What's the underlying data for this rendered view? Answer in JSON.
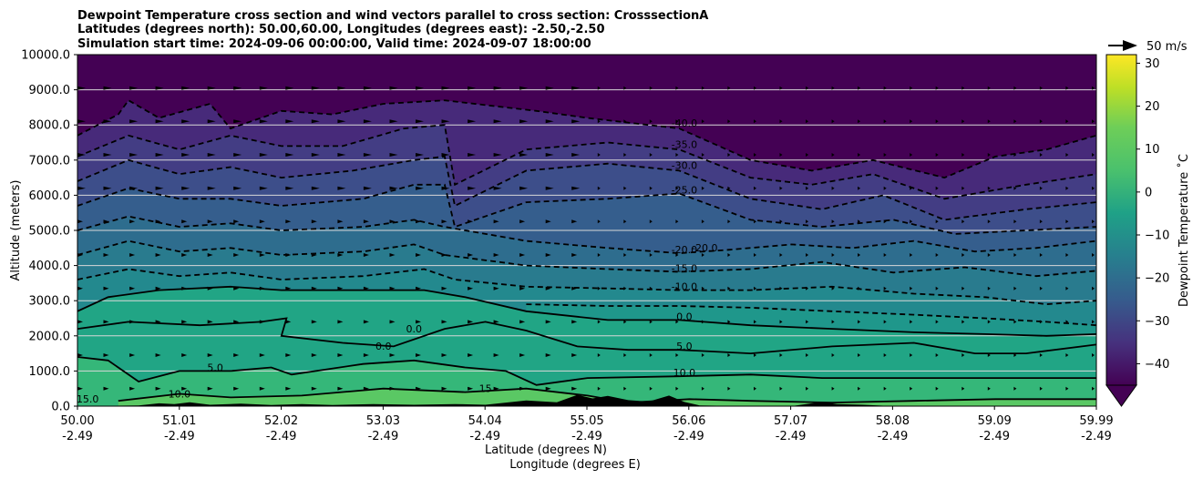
{
  "figure": {
    "title_lines": [
      "Dewpoint Temperature cross section and wind vectors parallel to cross section: CrosssectionA",
      "Latitudes (degrees north): 50.00,60.00, Longitudes (degrees east): -2.50,-2.50",
      "Simulation start time: 2024-09-06 00:00:00, Valid time: 2024-09-07 18:00:00"
    ]
  },
  "chart_data": {
    "type": "heatmap",
    "ylabel": "Altitude (meters)",
    "xlabel_lat": "Latitude (degrees N)",
    "xlabel_lon": "Longitude (degrees E)",
    "x_ticks": [
      {
        "lat": "50.00",
        "lon": "-2.49"
      },
      {
        "lat": "51.01",
        "lon": "-2.49"
      },
      {
        "lat": "52.02",
        "lon": "-2.49"
      },
      {
        "lat": "53.03",
        "lon": "-2.49"
      },
      {
        "lat": "54.04",
        "lon": "-2.49"
      },
      {
        "lat": "55.05",
        "lon": "-2.49"
      },
      {
        "lat": "56.06",
        "lon": "-2.49"
      },
      {
        "lat": "57.07",
        "lon": "-2.49"
      },
      {
        "lat": "58.08",
        "lon": "-2.49"
      },
      {
        "lat": "59.09",
        "lon": "-2.49"
      },
      {
        "lat": "59.99",
        "lon": "-2.49"
      }
    ],
    "xlim": [
      50.0,
      59.99
    ],
    "ylim": [
      0,
      10000
    ],
    "y_ticks": [
      "0.0",
      "1000.0",
      "2000.0",
      "3000.0",
      "4000.0",
      "5000.0",
      "6000.0",
      "7000.0",
      "8000.0",
      "9000.0",
      "10000.0"
    ],
    "y_tick_values": [
      0,
      1000,
      2000,
      3000,
      4000,
      5000,
      6000,
      7000,
      8000,
      9000,
      10000
    ],
    "grid": "horizontal",
    "colorbar": {
      "label": "Dewpoint Temperature $^\\circ$C",
      "label_display": "Dewpoint Temperature ˚C",
      "range": [
        -45,
        32
      ],
      "ticks": [
        "30",
        "20",
        "10",
        "0",
        "−10",
        "−20",
        "−30",
        "−40"
      ],
      "tick_values": [
        30,
        20,
        10,
        0,
        -10,
        -20,
        -30,
        -40
      ],
      "extend": "min",
      "colormap": "viridis"
    },
    "wind_key": {
      "label": "50 m/s"
    },
    "contour_labels": [
      {
        "text": "-40.0",
        "lat": 55.95,
        "alt": 7950
      },
      {
        "text": "-35.0",
        "lat": 55.95,
        "alt": 7350
      },
      {
        "text": "-30.0",
        "lat": 55.95,
        "alt": 6750
      },
      {
        "text": "-25.0",
        "lat": 55.95,
        "alt": 6050
      },
      {
        "text": "-20.0",
        "lat": 55.95,
        "alt": 4350
      },
      {
        "text": "-20.0",
        "lat": 56.15,
        "alt": 4400
      },
      {
        "text": "-15.0",
        "lat": 55.95,
        "alt": 3820
      },
      {
        "text": "-10.0",
        "lat": 55.95,
        "alt": 3300
      },
      {
        "text": "0.0",
        "lat": 55.95,
        "alt": 2450
      },
      {
        "text": "5.0",
        "lat": 55.95,
        "alt": 1600
      },
      {
        "text": "10.0",
        "lat": 55.95,
        "alt": 850
      },
      {
        "text": "5.0",
        "lat": 51.35,
        "alt": 1000
      },
      {
        "text": "0.0",
        "lat": 53.0,
        "alt": 1600
      },
      {
        "text": "0.0",
        "lat": 53.3,
        "alt": 2100
      },
      {
        "text": "15.0",
        "lat": 50.1,
        "alt": 100
      },
      {
        "text": "10.0",
        "lat": 51.0,
        "alt": 250
      },
      {
        "text": "15",
        "lat": 54.0,
        "alt": 400
      }
    ],
    "contours": [
      {
        "level": -40,
        "style": "dashed",
        "points": [
          [
            50.0,
            7700
          ],
          [
            50.4,
            8300
          ],
          [
            50.5,
            8700
          ],
          [
            50.8,
            8200
          ],
          [
            51.3,
            8600
          ],
          [
            51.5,
            7900
          ],
          [
            52.0,
            8400
          ],
          [
            52.5,
            8300
          ],
          [
            53.0,
            8600
          ],
          [
            53.6,
            8700
          ],
          [
            54.5,
            8400
          ],
          [
            55.0,
            8200
          ],
          [
            55.9,
            7900
          ],
          [
            56.6,
            7000
          ],
          [
            57.2,
            6700
          ],
          [
            57.8,
            7000
          ],
          [
            58.5,
            6500
          ],
          [
            59.0,
            7100
          ],
          [
            59.5,
            7300
          ],
          [
            59.99,
            7700
          ]
        ]
      },
      {
        "level": -35,
        "style": "dashed",
        "points": [
          [
            50.0,
            7100
          ],
          [
            50.5,
            7700
          ],
          [
            51.0,
            7300
          ],
          [
            51.5,
            7700
          ],
          [
            52.0,
            7400
          ],
          [
            52.6,
            7400
          ],
          [
            53.2,
            7900
          ],
          [
            53.6,
            8000
          ],
          [
            53.7,
            6300
          ],
          [
            54.4,
            7300
          ],
          [
            55.2,
            7500
          ],
          [
            55.9,
            7300
          ],
          [
            56.6,
            6500
          ],
          [
            57.2,
            6300
          ],
          [
            57.8,
            6600
          ],
          [
            58.5,
            5900
          ],
          [
            59.3,
            6300
          ],
          [
            59.99,
            6600
          ]
        ]
      },
      {
        "level": -30,
        "style": "dashed",
        "points": [
          [
            50.0,
            6400
          ],
          [
            50.5,
            7000
          ],
          [
            51.0,
            6600
          ],
          [
            51.5,
            6800
          ],
          [
            52.0,
            6500
          ],
          [
            52.7,
            6700
          ],
          [
            53.3,
            7000
          ],
          [
            53.6,
            7100
          ],
          [
            53.7,
            5700
          ],
          [
            54.4,
            6700
          ],
          [
            55.2,
            6900
          ],
          [
            55.9,
            6700
          ],
          [
            56.6,
            5900
          ],
          [
            57.3,
            5600
          ],
          [
            57.9,
            6000
          ],
          [
            58.5,
            5300
          ],
          [
            59.3,
            5600
          ],
          [
            59.99,
            5800
          ]
        ]
      },
      {
        "level": -25,
        "style": "dashed",
        "points": [
          [
            50.0,
            5700
          ],
          [
            50.5,
            6200
          ],
          [
            51.0,
            5900
          ],
          [
            51.5,
            5900
          ],
          [
            52.0,
            5700
          ],
          [
            52.8,
            5900
          ],
          [
            53.3,
            6300
          ],
          [
            53.6,
            6300
          ],
          [
            53.7,
            5100
          ],
          [
            54.4,
            5800
          ],
          [
            55.2,
            5900
          ],
          [
            55.9,
            6050
          ],
          [
            56.6,
            5300
          ],
          [
            57.3,
            5100
          ],
          [
            58.0,
            5300
          ],
          [
            58.6,
            4900
          ],
          [
            59.3,
            5000
          ],
          [
            59.99,
            5100
          ]
        ]
      },
      {
        "level": -20,
        "style": "dashed",
        "points": [
          [
            50.0,
            5000
          ],
          [
            50.5,
            5400
          ],
          [
            51.0,
            5100
          ],
          [
            51.5,
            5200
          ],
          [
            52.0,
            5000
          ],
          [
            52.8,
            5100
          ],
          [
            53.3,
            5300
          ],
          [
            53.6,
            5100
          ],
          [
            54.4,
            4700
          ],
          [
            55.2,
            4500
          ],
          [
            55.9,
            4350
          ],
          [
            56.4,
            4450
          ],
          [
            57.0,
            4600
          ],
          [
            57.6,
            4500
          ],
          [
            58.2,
            4700
          ],
          [
            58.8,
            4400
          ],
          [
            59.4,
            4500
          ],
          [
            59.99,
            4700
          ]
        ]
      },
      {
        "level": -15,
        "style": "dashed",
        "points": [
          [
            50.0,
            4300
          ],
          [
            50.5,
            4700
          ],
          [
            51.0,
            4400
          ],
          [
            51.5,
            4500
          ],
          [
            52.0,
            4300
          ],
          [
            52.8,
            4400
          ],
          [
            53.3,
            4600
          ],
          [
            53.6,
            4300
          ],
          [
            54.4,
            4000
          ],
          [
            55.2,
            3900
          ],
          [
            55.9,
            3820
          ],
          [
            56.6,
            3900
          ],
          [
            57.3,
            4100
          ],
          [
            58.0,
            3800
          ],
          [
            58.7,
            3950
          ],
          [
            59.4,
            3700
          ],
          [
            59.99,
            3850
          ]
        ]
      },
      {
        "level": -10,
        "style": "dashed",
        "points": [
          [
            50.0,
            3600
          ],
          [
            50.5,
            3900
          ],
          [
            51.0,
            3700
          ],
          [
            51.5,
            3800
          ],
          [
            52.0,
            3600
          ],
          [
            52.8,
            3700
          ],
          [
            53.4,
            3900
          ],
          [
            53.7,
            3600
          ],
          [
            54.4,
            3400
          ],
          [
            55.2,
            3350
          ],
          [
            55.9,
            3300
          ],
          [
            56.6,
            3300
          ],
          [
            57.4,
            3400
          ],
          [
            58.2,
            3200
          ],
          [
            58.9,
            3100
          ],
          [
            59.5,
            2900
          ],
          [
            59.99,
            3000
          ]
        ]
      },
      {
        "level": -5,
        "style": "dashed",
        "points": [
          [
            54.4,
            2900
          ],
          [
            55.2,
            2850
          ],
          [
            55.9,
            2850
          ],
          [
            56.6,
            2800
          ],
          [
            57.4,
            2700
          ],
          [
            58.2,
            2600
          ],
          [
            58.9,
            2500
          ],
          [
            59.5,
            2400
          ],
          [
            59.99,
            2300
          ]
        ]
      },
      {
        "level": 0,
        "style": "solid",
        "points": [
          [
            50.0,
            2700
          ],
          [
            50.3,
            3100
          ],
          [
            50.8,
            3300
          ],
          [
            51.5,
            3400
          ],
          [
            52.0,
            3300
          ],
          [
            52.7,
            3300
          ],
          [
            53.4,
            3300
          ],
          [
            53.8,
            3100
          ],
          [
            54.4,
            2700
          ],
          [
            55.2,
            2450
          ],
          [
            55.9,
            2450
          ],
          [
            56.6,
            2300
          ],
          [
            57.4,
            2200
          ],
          [
            58.2,
            2100
          ],
          [
            58.9,
            2050
          ],
          [
            59.5,
            2000
          ],
          [
            59.99,
            2050
          ]
        ]
      },
      {
        "level": 0,
        "style": "solid",
        "points": [
          [
            50.0,
            2200
          ],
          [
            50.5,
            2400
          ],
          [
            51.2,
            2300
          ],
          [
            51.8,
            2400
          ],
          [
            52.05,
            2500
          ],
          [
            52.0,
            2000
          ],
          [
            52.6,
            1800
          ],
          [
            53.1,
            1700
          ],
          [
            53.6,
            2200
          ],
          [
            54.0,
            2400
          ],
          [
            54.4,
            2150
          ],
          [
            54.9,
            1700
          ],
          [
            55.4,
            1600
          ],
          [
            55.9,
            1600
          ],
          [
            56.6,
            1500
          ],
          [
            57.4,
            1700
          ],
          [
            58.2,
            1800
          ],
          [
            58.8,
            1500
          ],
          [
            59.3,
            1500
          ],
          [
            59.99,
            1750
          ]
        ]
      },
      {
        "level": 5,
        "style": "solid",
        "points": [
          [
            50.0,
            1400
          ],
          [
            50.3,
            1300
          ],
          [
            50.6,
            700
          ],
          [
            51.0,
            1000
          ],
          [
            51.5,
            1000
          ],
          [
            51.9,
            1100
          ],
          [
            52.1,
            900
          ],
          [
            52.8,
            1200
          ],
          [
            53.3,
            1300
          ],
          [
            53.8,
            1100
          ],
          [
            54.2,
            1000
          ],
          [
            54.5,
            600
          ],
          [
            55.0,
            800
          ],
          [
            55.9,
            850
          ],
          [
            56.6,
            900
          ],
          [
            57.3,
            800
          ],
          [
            58.2,
            800
          ],
          [
            58.8,
            800
          ],
          [
            59.4,
            800
          ],
          [
            59.99,
            800
          ]
        ]
      },
      {
        "level": 10,
        "style": "solid",
        "points": [
          [
            50.4,
            150
          ],
          [
            51.0,
            350
          ],
          [
            51.5,
            250
          ],
          [
            52.2,
            300
          ],
          [
            53.0,
            500
          ],
          [
            53.8,
            400
          ],
          [
            54.4,
            500
          ],
          [
            55.0,
            300
          ],
          [
            55.4,
            100
          ],
          [
            56.0,
            200
          ],
          [
            56.6,
            150
          ],
          [
            57.4,
            100
          ],
          [
            58.2,
            150
          ],
          [
            59.0,
            200
          ],
          [
            59.99,
            200
          ]
        ]
      }
    ],
    "terrain_profile": [
      [
        50.0,
        0
      ],
      [
        50.6,
        20
      ],
      [
        50.8,
        80
      ],
      [
        50.95,
        60
      ],
      [
        51.1,
        110
      ],
      [
        51.3,
        40
      ],
      [
        51.6,
        70
      ],
      [
        51.9,
        30
      ],
      [
        52.2,
        60
      ],
      [
        52.5,
        30
      ],
      [
        52.9,
        60
      ],
      [
        53.3,
        40
      ],
      [
        53.7,
        60
      ],
      [
        54.0,
        40
      ],
      [
        54.4,
        160
      ],
      [
        54.7,
        110
      ],
      [
        54.9,
        320
      ],
      [
        55.05,
        220
      ],
      [
        55.2,
        290
      ],
      [
        55.4,
        170
      ],
      [
        55.6,
        130
      ],
      [
        55.8,
        300
      ],
      [
        55.95,
        120
      ],
      [
        56.1,
        20
      ],
      [
        56.6,
        0
      ],
      [
        57.0,
        0
      ],
      [
        57.3,
        120
      ],
      [
        57.45,
        60
      ],
      [
        57.7,
        40
      ],
      [
        58.0,
        0
      ],
      [
        59.99,
        0
      ]
    ]
  }
}
